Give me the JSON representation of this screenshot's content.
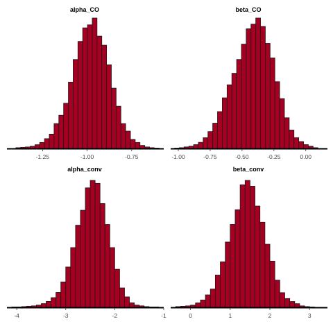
{
  "colors": {
    "bar_fill": "#a50021",
    "bar_stroke": "#1a1a1a",
    "axis": "#000000",
    "tick_text": "#4d4d4d"
  },
  "chart_data": [
    {
      "type": "bar",
      "title": "alpha_CO",
      "xlabel": "",
      "ylabel": "",
      "xlim": [
        -1.45,
        -0.57
      ],
      "bin_width": 0.0268,
      "x_ticks": [
        -1.25,
        -1.0,
        -0.75
      ],
      "x_tick_labels": [
        "-1.25",
        "-1.00",
        "-0.75"
      ],
      "bin_starts": [
        -1.4,
        -1.3732,
        -1.3464,
        -1.3196,
        -1.2928,
        -1.266,
        -1.2392,
        -1.2124,
        -1.1856,
        -1.1588,
        -1.132,
        -1.1052,
        -1.0784,
        -1.0516,
        -1.0248,
        -0.998,
        -0.9712,
        -0.9444,
        -0.9176,
        -0.8908,
        -0.864,
        -0.8372,
        -0.8104,
        -0.7836,
        -0.7568,
        -0.73,
        -0.7032,
        -0.6764,
        -0.6496,
        -0.6228
      ],
      "values": [
        1,
        1.5,
        2,
        3,
        5,
        8,
        13,
        19,
        33,
        44,
        60,
        88,
        118,
        142,
        160,
        164,
        173,
        149,
        137,
        111,
        80,
        56,
        33,
        23,
        12,
        8,
        4,
        2,
        1,
        0.5
      ]
    },
    {
      "type": "bar",
      "title": "beta_CO",
      "xlabel": "",
      "ylabel": "",
      "xlim": [
        -1.06,
        0.17
      ],
      "bin_width": 0.0375,
      "x_ticks": [
        -1.0,
        -0.75,
        -0.5,
        -0.25,
        0.0
      ],
      "x_tick_labels": [
        "-1.00",
        "-0.75",
        "-0.50",
        "-0.25",
        "0.00"
      ],
      "bin_starts": [
        -1.03,
        -0.9925,
        -0.955,
        -0.9175,
        -0.88,
        -0.8425,
        -0.805,
        -0.7675,
        -0.73,
        -0.6925,
        -0.655,
        -0.6175,
        -0.58,
        -0.5425,
        -0.505,
        -0.4675,
        -0.43,
        -0.3925,
        -0.355,
        -0.3175,
        -0.28,
        -0.2425,
        -0.205,
        -0.1675,
        -0.13,
        -0.0925,
        -0.055,
        -0.0175,
        0.02,
        0.0575
      ],
      "values": [
        0.5,
        1,
        2,
        3,
        5,
        8,
        14,
        22,
        33,
        48,
        66,
        83,
        98,
        116,
        136,
        156,
        162,
        170,
        159,
        137,
        118,
        87,
        65,
        40,
        24,
        14,
        9,
        5,
        3,
        1
      ]
    },
    {
      "type": "bar",
      "title": "alpha_conv",
      "xlabel": "",
      "ylabel": "",
      "xlim": [
        -4.2,
        -1.0
      ],
      "bin_width": 0.1,
      "x_ticks": [
        -4,
        -3,
        -2,
        -1
      ],
      "x_tick_labels": [
        "-4",
        "-3",
        "-2",
        "-1"
      ],
      "bin_starts": [
        -4.1,
        -4.0,
        -3.9,
        -3.8,
        -3.7,
        -3.6,
        -3.5,
        -3.4,
        -3.3,
        -3.2,
        -3.1,
        -3.0,
        -2.9,
        -2.8,
        -2.7,
        -2.6,
        -2.5,
        -2.4,
        -2.3,
        -2.2,
        -2.1,
        -2.0,
        -1.9,
        -1.8,
        -1.7,
        -1.6,
        -1.5,
        -1.4,
        -1.3,
        -1.2
      ],
      "values": [
        0.5,
        0.5,
        1,
        1.5,
        2,
        3,
        5,
        8,
        13,
        20,
        34,
        54,
        80,
        110,
        130,
        160,
        170,
        166,
        139,
        111,
        80,
        51,
        26,
        14,
        6,
        3,
        2,
        1,
        0.5,
        0.5
      ]
    },
    {
      "type": "bar",
      "title": "beta_conv",
      "xlabel": "",
      "ylabel": "",
      "xlim": [
        -0.5,
        3.45
      ],
      "bin_width": 0.125,
      "x_ticks": [
        0,
        1,
        2,
        3
      ],
      "x_tick_labels": [
        "0",
        "1",
        "2",
        "3"
      ],
      "bin_starts": [
        -0.375,
        -0.25,
        -0.125,
        0.0,
        0.125,
        0.25,
        0.375,
        0.5,
        0.625,
        0.75,
        0.875,
        1.0,
        1.125,
        1.25,
        1.375,
        1.5,
        1.625,
        1.75,
        1.875,
        2.0,
        2.125,
        2.25,
        2.375,
        2.5,
        2.625,
        2.75,
        2.875,
        3.0
      ],
      "values": [
        1,
        1.5,
        2,
        3,
        6,
        10,
        17,
        25,
        44,
        62,
        89,
        113,
        133,
        167,
        173,
        165,
        138,
        116,
        86,
        63,
        37,
        20,
        12,
        8,
        5,
        2,
        1,
        0.5
      ]
    }
  ]
}
